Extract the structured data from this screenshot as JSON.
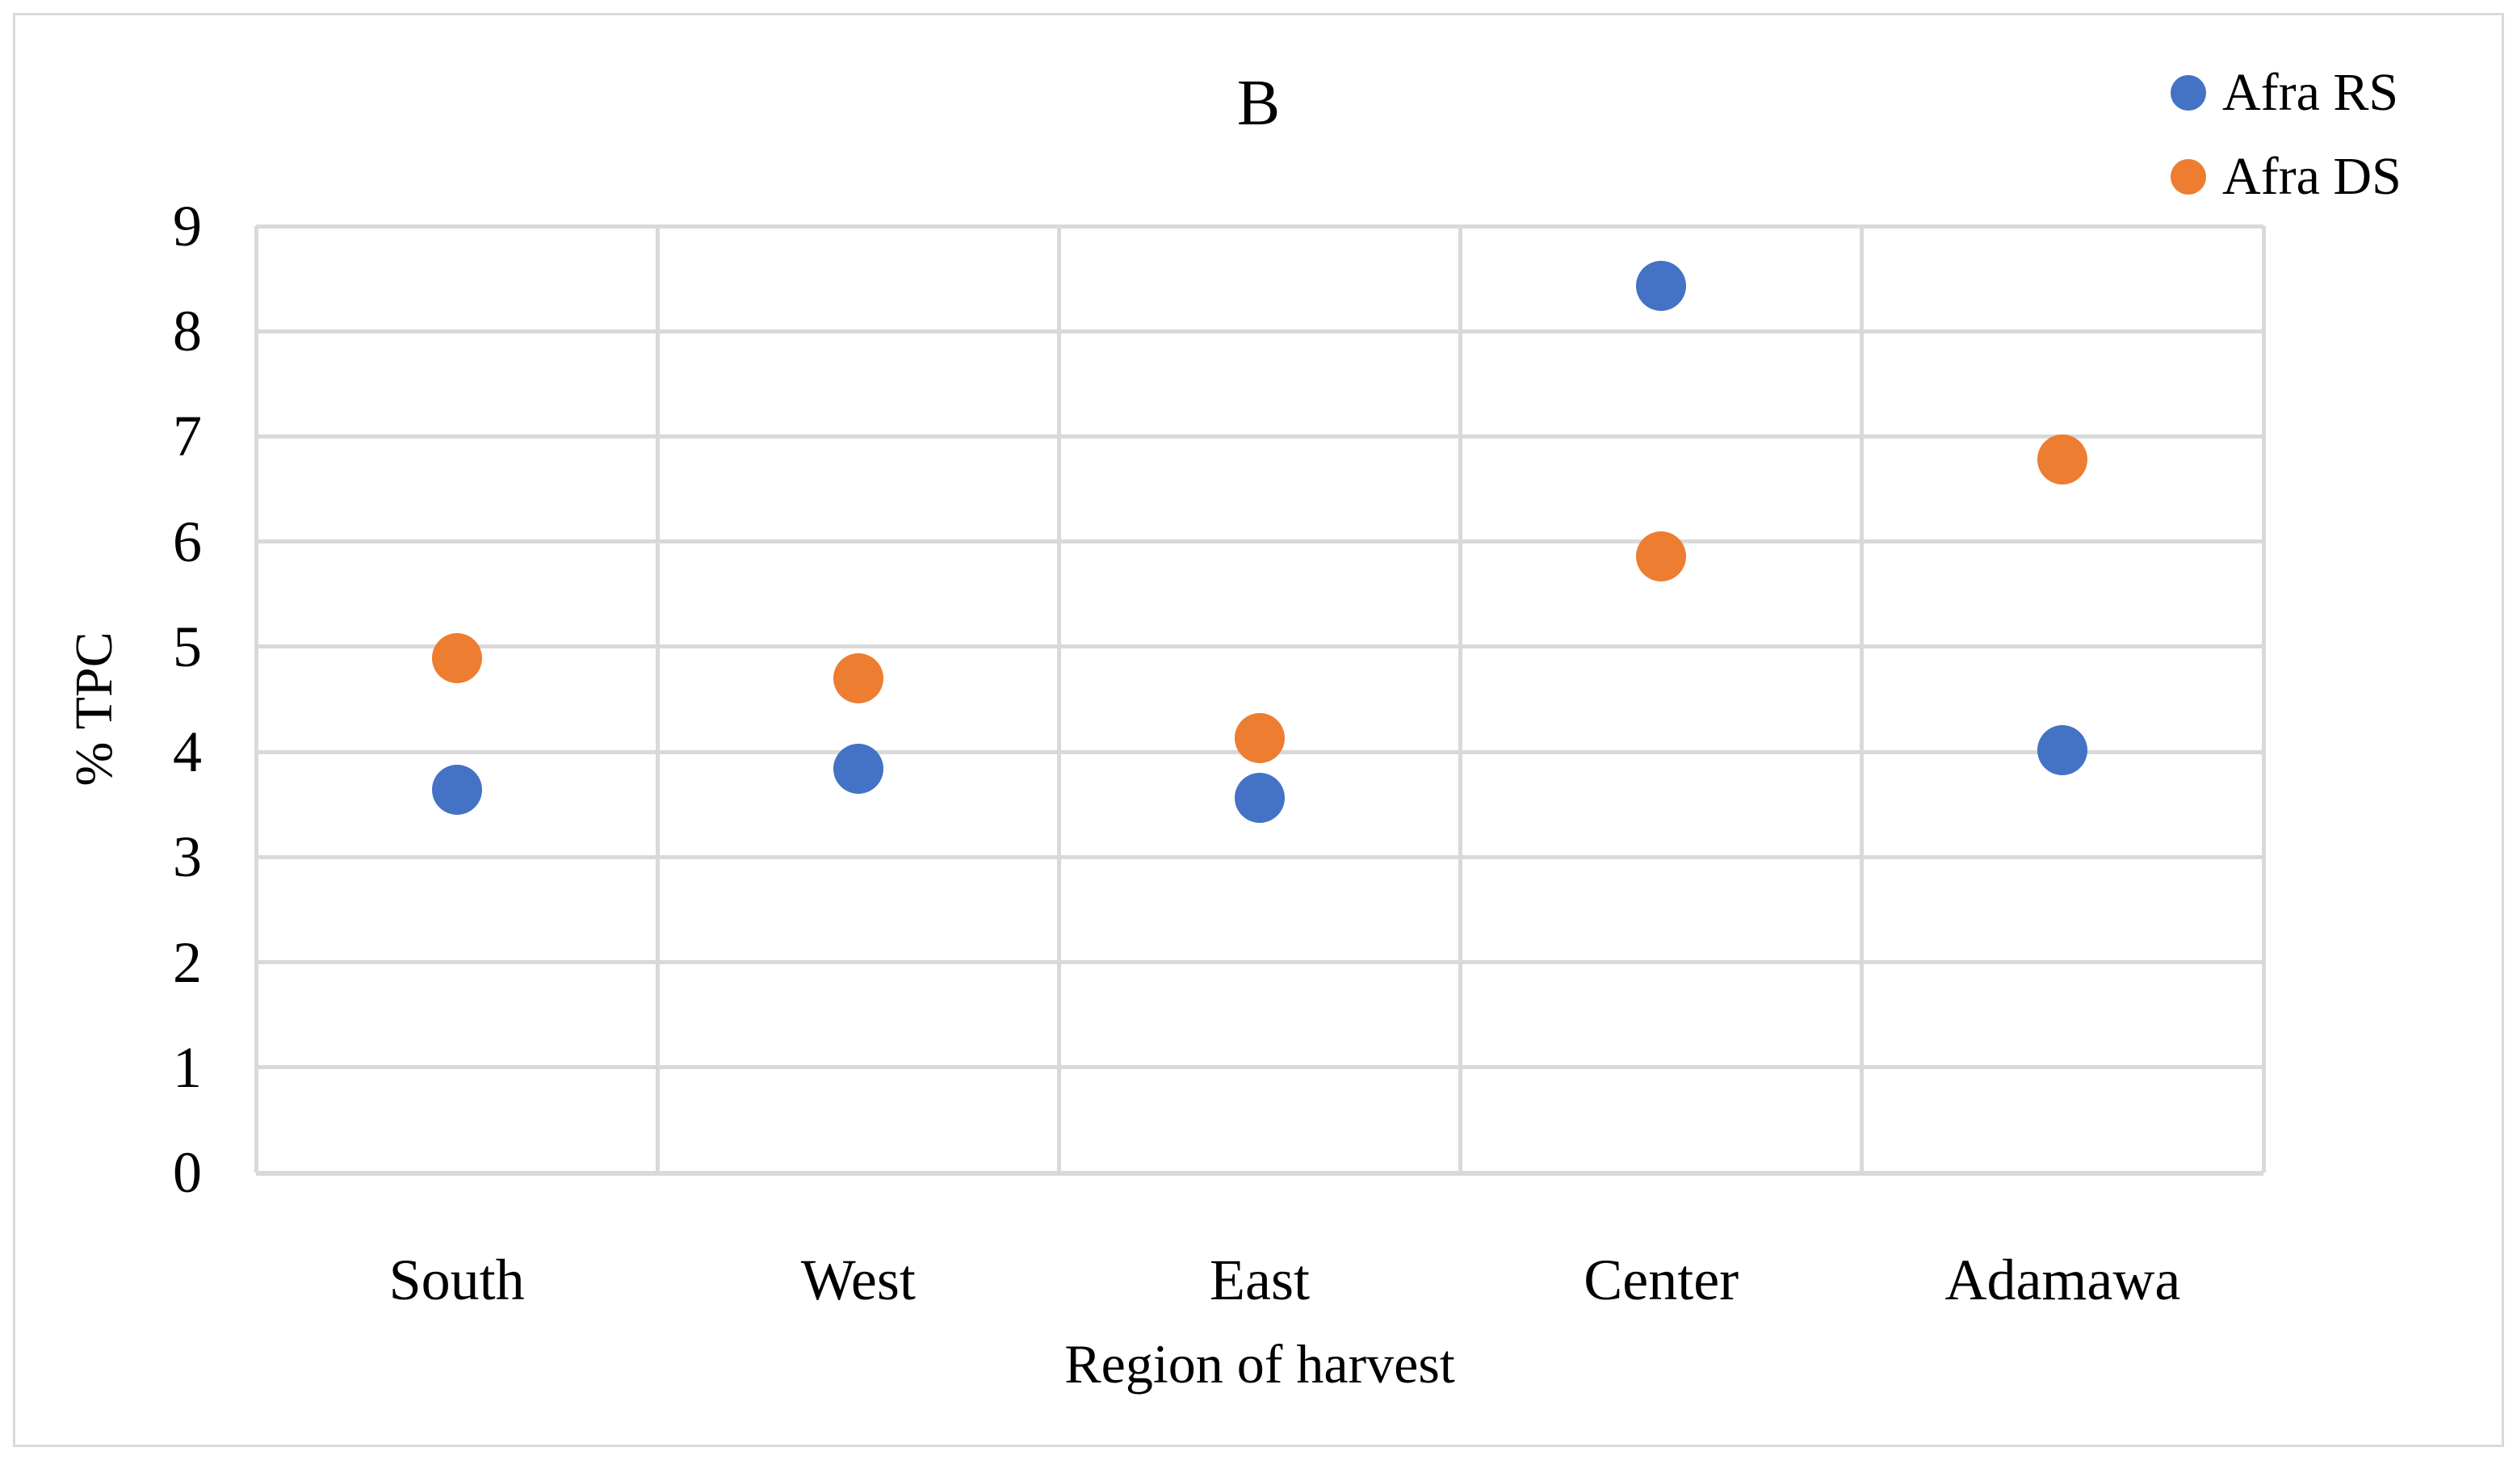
{
  "chart_data": {
    "type": "scatter",
    "title": "B",
    "categories": [
      "South",
      "West",
      "East",
      "Center",
      "Adamawa"
    ],
    "series": [
      {
        "name": "Afra RS",
        "color": "#4472C4",
        "values": [
          3.64,
          3.84,
          3.56,
          8.43,
          4.02
        ]
      },
      {
        "name": "Afra DS",
        "color": "#ED7D31",
        "values": [
          4.89,
          4.7,
          4.13,
          5.86,
          6.78
        ]
      }
    ],
    "xlabel": "Region of harvest",
    "ylabel": "% TPC",
    "ylim": [
      0,
      9
    ],
    "yticks": [
      0,
      1,
      2,
      3,
      4,
      5,
      6,
      7,
      8,
      9
    ],
    "grid": "both",
    "gridline_color": "#D9D9D9",
    "legend_position": "top-right",
    "background_color": "#FFFFFF",
    "border_color": "#D9D9D9"
  }
}
